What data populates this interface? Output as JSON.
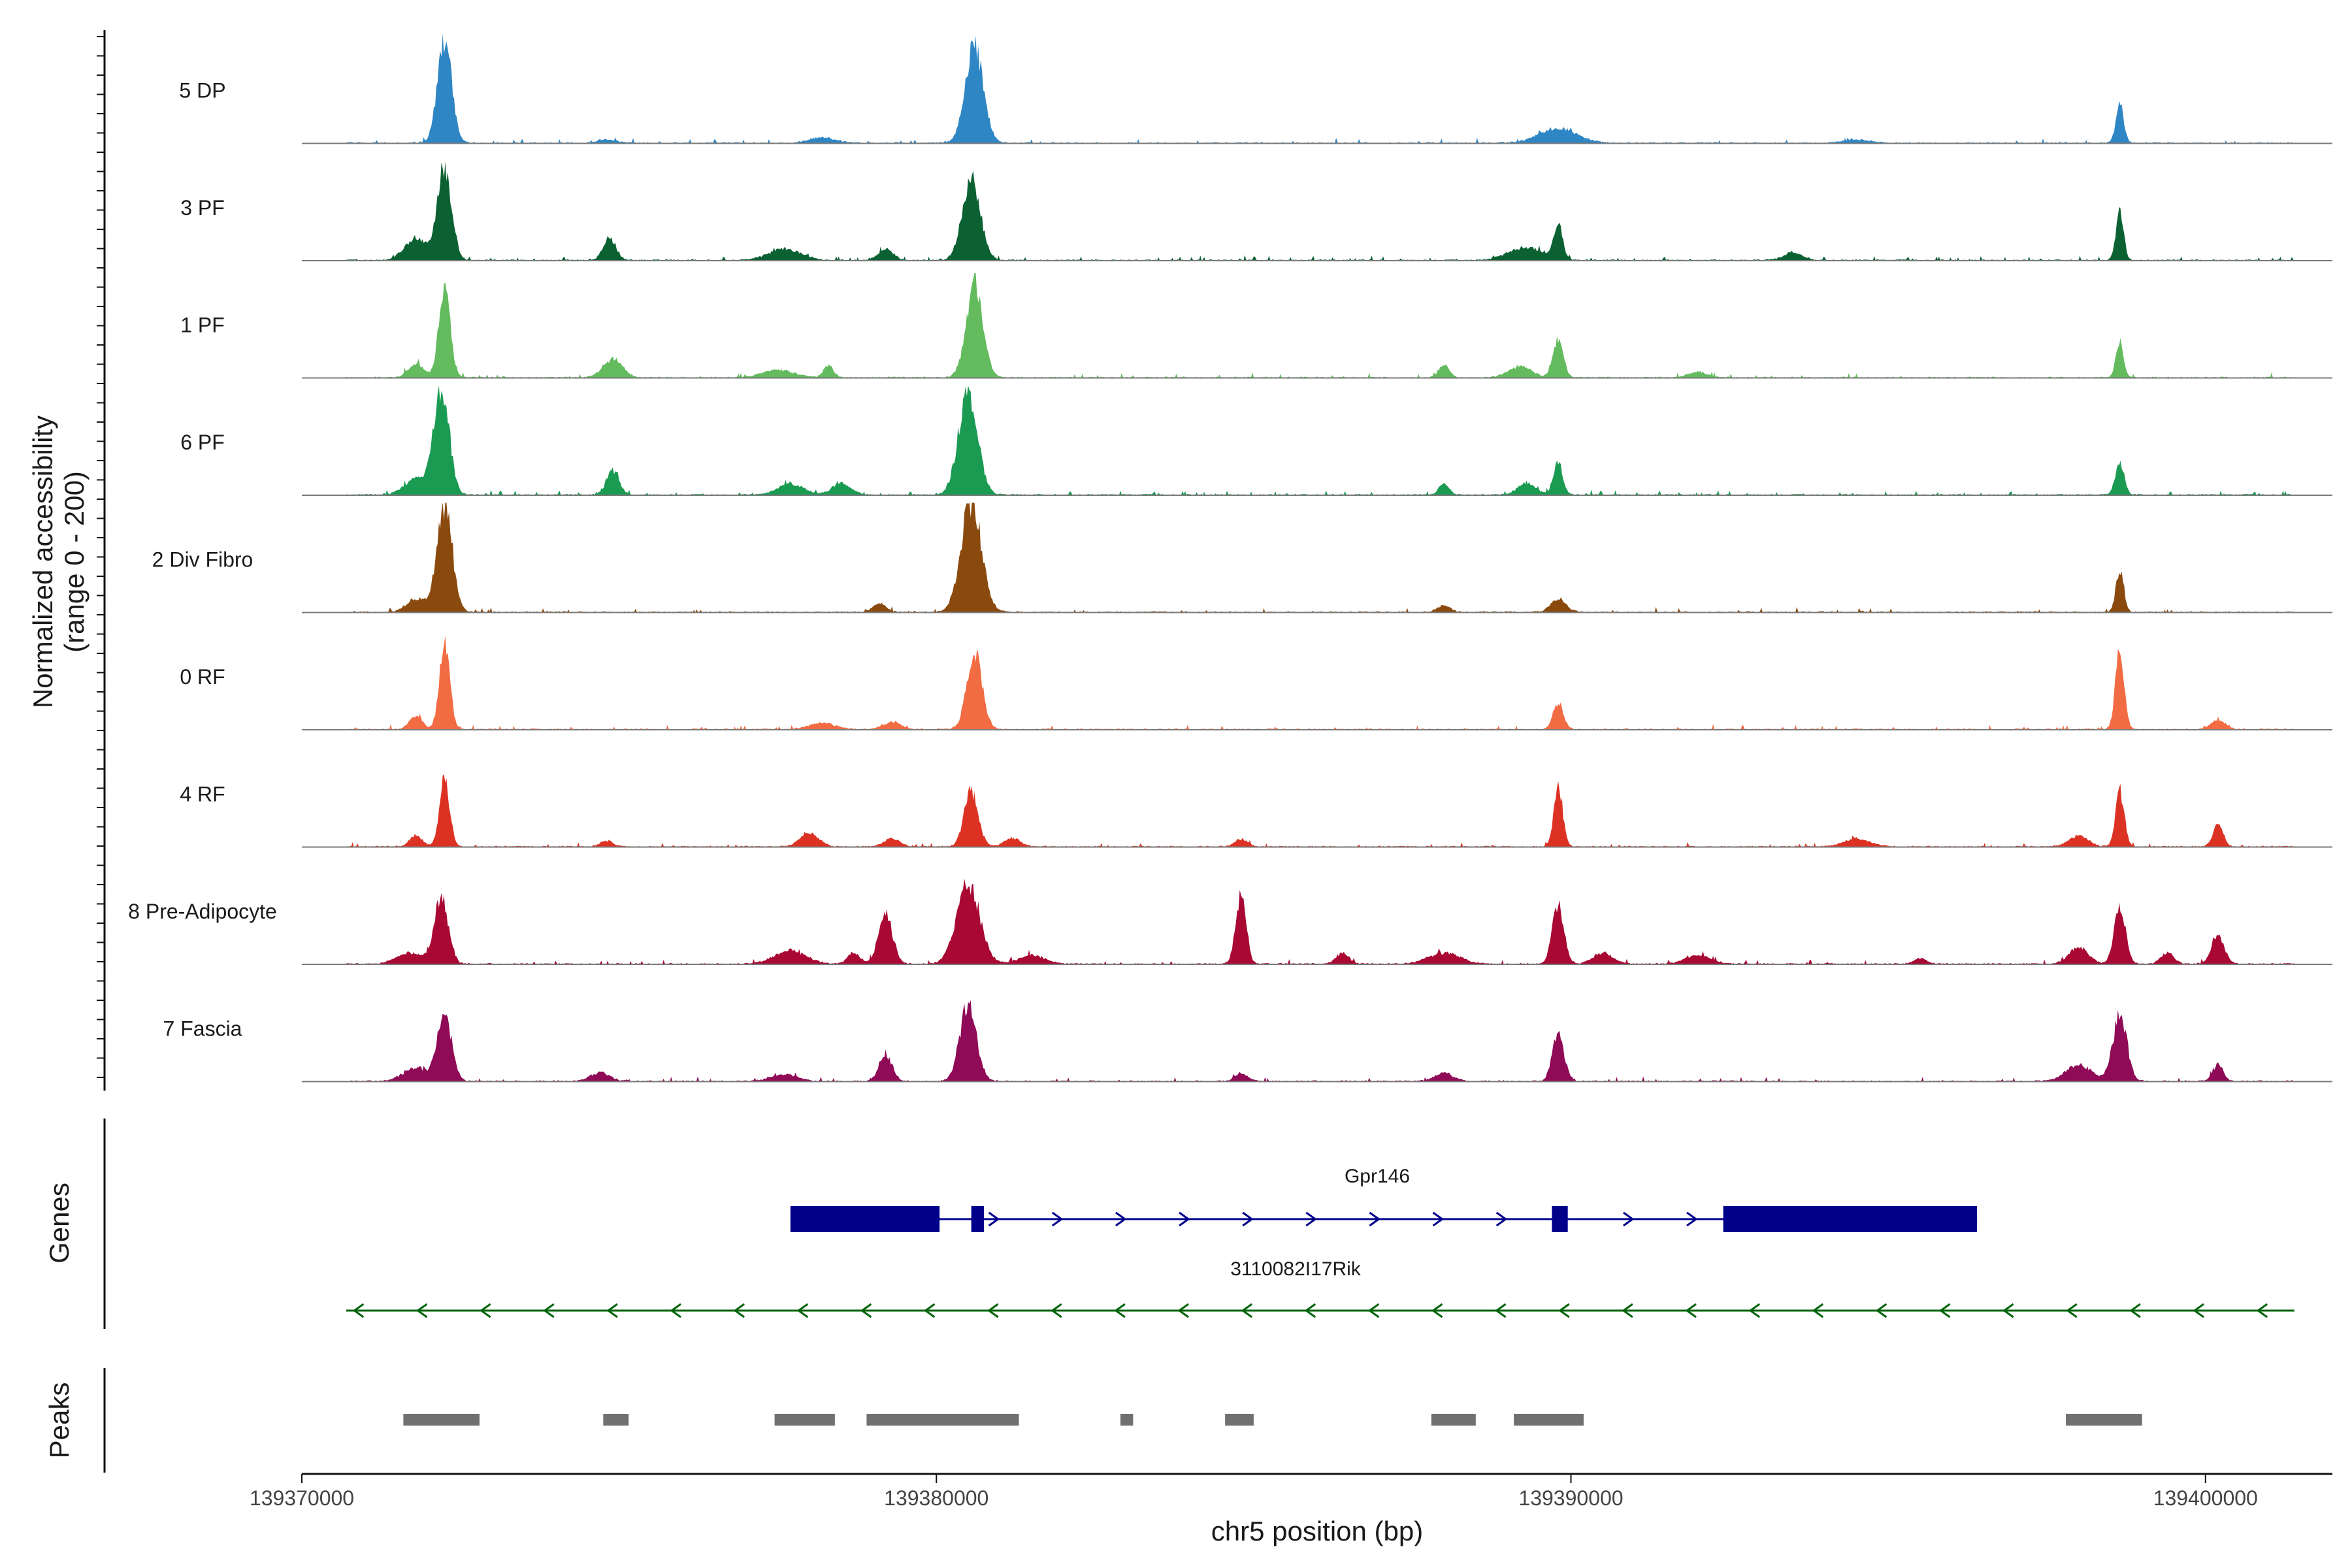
{
  "chart_data": {
    "type": "area",
    "xlabel": "chr5 position (bp)",
    "ylabel": "Normalized accessibility",
    "ylabel_range": "(range 0 - 200)",
    "xlim": [
      139370000,
      139402000
    ],
    "ylim": [
      0,
      200
    ],
    "x_ticks": [
      139370000,
      139380000,
      139390000,
      139400000
    ],
    "x_tick_labels": [
      "139370000",
      "139380000",
      "139390000",
      "139400000"
    ],
    "track_titles": {
      "genes": "Genes",
      "peaks": "Peaks"
    },
    "track_range": [
      139370700,
      139401400
    ],
    "tracks": [
      {
        "name": "5 DP",
        "color": "#2f86c4",
        "peaks": [
          [
            139372250,
            0.95,
            110
          ],
          [
            139380600,
            0.9,
            140
          ],
          [
            139389800,
            0.13,
            300
          ],
          [
            139398650,
            0.36,
            60
          ],
          [
            139374800,
            0.03,
            150
          ],
          [
            139378200,
            0.05,
            200
          ],
          [
            139394500,
            0.03,
            200
          ]
        ]
      },
      {
        "name": "3 PF",
        "color": "#0b6132",
        "peaks": [
          [
            139372250,
            0.85,
            110
          ],
          [
            139371800,
            0.2,
            180
          ],
          [
            139374850,
            0.2,
            100
          ],
          [
            139377600,
            0.1,
            250
          ],
          [
            139379200,
            0.1,
            120
          ],
          [
            139380550,
            0.75,
            140
          ],
          [
            139389300,
            0.12,
            280
          ],
          [
            139389800,
            0.3,
            70
          ],
          [
            139393500,
            0.07,
            150
          ],
          [
            139398650,
            0.45,
            60
          ]
        ]
      },
      {
        "name": "1 PF",
        "color": "#63bb5e",
        "peaks": [
          [
            139372250,
            0.8,
            90
          ],
          [
            139371800,
            0.12,
            120
          ],
          [
            139374900,
            0.17,
            150
          ],
          [
            139377500,
            0.07,
            250
          ],
          [
            139378300,
            0.1,
            80
          ],
          [
            139380600,
            0.85,
            130
          ],
          [
            139388000,
            0.12,
            80
          ],
          [
            139389200,
            0.1,
            180
          ],
          [
            139389800,
            0.35,
            80
          ],
          [
            139392000,
            0.05,
            150
          ],
          [
            139398650,
            0.33,
            60
          ]
        ]
      },
      {
        "name": "6 PF",
        "color": "#1b9a52",
        "peaks": [
          [
            139372200,
            0.97,
            120
          ],
          [
            139371800,
            0.15,
            180
          ],
          [
            139374900,
            0.22,
            100
          ],
          [
            139377700,
            0.1,
            200
          ],
          [
            139378500,
            0.1,
            150
          ],
          [
            139380500,
            0.95,
            150
          ],
          [
            139388000,
            0.1,
            80
          ],
          [
            139389300,
            0.1,
            150
          ],
          [
            139389800,
            0.3,
            70
          ],
          [
            139398650,
            0.3,
            70
          ]
        ]
      },
      {
        "name": "2 Div Fibro",
        "color": "#8a4a0e",
        "peaks": [
          [
            139372250,
            0.95,
            120
          ],
          [
            139371800,
            0.12,
            150
          ],
          [
            139380550,
            1.0,
            160
          ],
          [
            139379100,
            0.08,
            100
          ],
          [
            139388000,
            0.06,
            100
          ],
          [
            139389800,
            0.12,
            120
          ],
          [
            139398650,
            0.4,
            60
          ]
        ]
      },
      {
        "name": "0 RF",
        "color": "#f26c43",
        "peaks": [
          [
            139372250,
            0.8,
            80
          ],
          [
            139371800,
            0.12,
            100
          ],
          [
            139378200,
            0.06,
            200
          ],
          [
            139379300,
            0.06,
            150
          ],
          [
            139380600,
            0.7,
            120
          ],
          [
            139389800,
            0.25,
            80
          ],
          [
            139398650,
            0.7,
            70
          ],
          [
            139400200,
            0.08,
            120
          ]
        ]
      },
      {
        "name": "4 RF",
        "color": "#dc3224",
        "peaks": [
          [
            139372250,
            0.6,
            80
          ],
          [
            139371800,
            0.1,
            100
          ],
          [
            139374800,
            0.05,
            100
          ],
          [
            139378000,
            0.12,
            150
          ],
          [
            139379300,
            0.07,
            120
          ],
          [
            139380550,
            0.5,
            110
          ],
          [
            139381200,
            0.08,
            120
          ],
          [
            139384800,
            0.07,
            100
          ],
          [
            139389800,
            0.55,
            70
          ],
          [
            139394500,
            0.07,
            200
          ],
          [
            139398650,
            0.5,
            70
          ],
          [
            139398000,
            0.1,
            150
          ],
          [
            139400200,
            0.2,
            80
          ]
        ]
      },
      {
        "name": "8 Pre-Adipocyte",
        "color": "#a80832",
        "peaks": [
          [
            139372200,
            0.6,
            110
          ],
          [
            139371700,
            0.1,
            200
          ],
          [
            139377700,
            0.12,
            250
          ],
          [
            139378700,
            0.1,
            100
          ],
          [
            139379200,
            0.45,
            110
          ],
          [
            139380500,
            0.75,
            180
          ],
          [
            139381500,
            0.08,
            200
          ],
          [
            139384800,
            0.65,
            80
          ],
          [
            139386400,
            0.1,
            100
          ],
          [
            139388000,
            0.1,
            250
          ],
          [
            139389800,
            0.55,
            90
          ],
          [
            139390500,
            0.1,
            150
          ],
          [
            139392000,
            0.08,
            200
          ],
          [
            139395500,
            0.05,
            100
          ],
          [
            139398650,
            0.5,
            90
          ],
          [
            139398000,
            0.15,
            150
          ],
          [
            139399400,
            0.1,
            100
          ],
          [
            139400200,
            0.25,
            100
          ]
        ]
      },
      {
        "name": "7 Fascia",
        "color": "#8f0a57",
        "peaks": [
          [
            139372250,
            0.6,
            110
          ],
          [
            139371800,
            0.12,
            200
          ],
          [
            139374700,
            0.08,
            150
          ],
          [
            139377600,
            0.06,
            200
          ],
          [
            139379200,
            0.25,
            100
          ],
          [
            139380500,
            0.7,
            130
          ],
          [
            139384800,
            0.07,
            100
          ],
          [
            139388000,
            0.07,
            150
          ],
          [
            139389800,
            0.45,
            90
          ],
          [
            139398650,
            0.6,
            110
          ],
          [
            139398000,
            0.15,
            200
          ],
          [
            139400200,
            0.15,
            80
          ]
        ]
      }
    ],
    "genes": [
      {
        "name": "Gpr146",
        "strand": "+",
        "start": 139377700,
        "end": 139396400,
        "exons": [
          [
            139377700,
            139380050
          ],
          [
            139380550,
            139380750
          ],
          [
            139389700,
            139389950
          ],
          [
            139392400,
            139396400
          ]
        ],
        "color": "#00008b"
      },
      {
        "name": "3110082I17Rik",
        "strand": "-",
        "start": 139370700,
        "end": 139401400,
        "exons": [],
        "color": "#00640a"
      }
    ],
    "peak_regions": [
      [
        139371600,
        139372800
      ],
      [
        139374750,
        139375150
      ],
      [
        139377450,
        139378400
      ],
      [
        139378900,
        139381300
      ],
      [
        139382900,
        139383100
      ],
      [
        139384550,
        139385000
      ],
      [
        139387800,
        139388500
      ],
      [
        139389100,
        139390200
      ],
      [
        139397800,
        139399000
      ]
    ],
    "peak_color": "#707070"
  }
}
